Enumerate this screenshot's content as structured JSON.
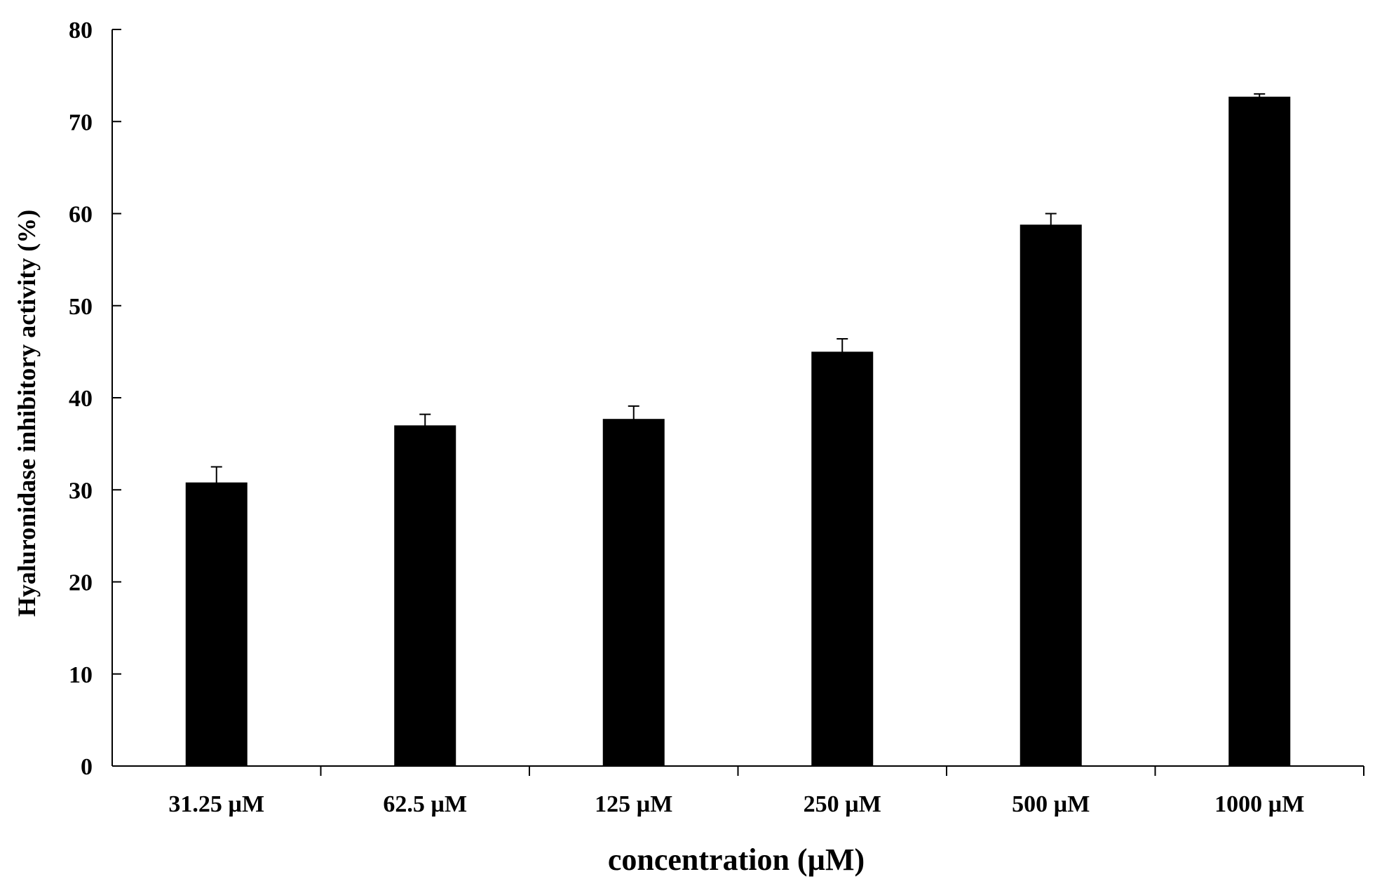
{
  "chart_data": {
    "type": "bar",
    "title": "",
    "xlabel": "concentration (µM)",
    "ylabel": "Hyaluronidase inhibitory activity (%)",
    "ylim": [
      0,
      80
    ],
    "yticks": [
      0,
      10,
      20,
      30,
      40,
      50,
      60,
      70,
      80
    ],
    "categories": [
      "31.25 µM",
      "62.5 µM",
      "125 µM",
      "250 µM",
      "500 µM",
      "1000 µM"
    ],
    "series": [
      {
        "values": [
          30.8,
          37.0,
          37.7,
          45.0,
          58.8,
          72.7
        ],
        "errors": [
          1.7,
          1.2,
          1.4,
          1.4,
          1.2,
          0.3
        ],
        "color": "#000000"
      }
    ],
    "grid": false,
    "legend": "none"
  }
}
